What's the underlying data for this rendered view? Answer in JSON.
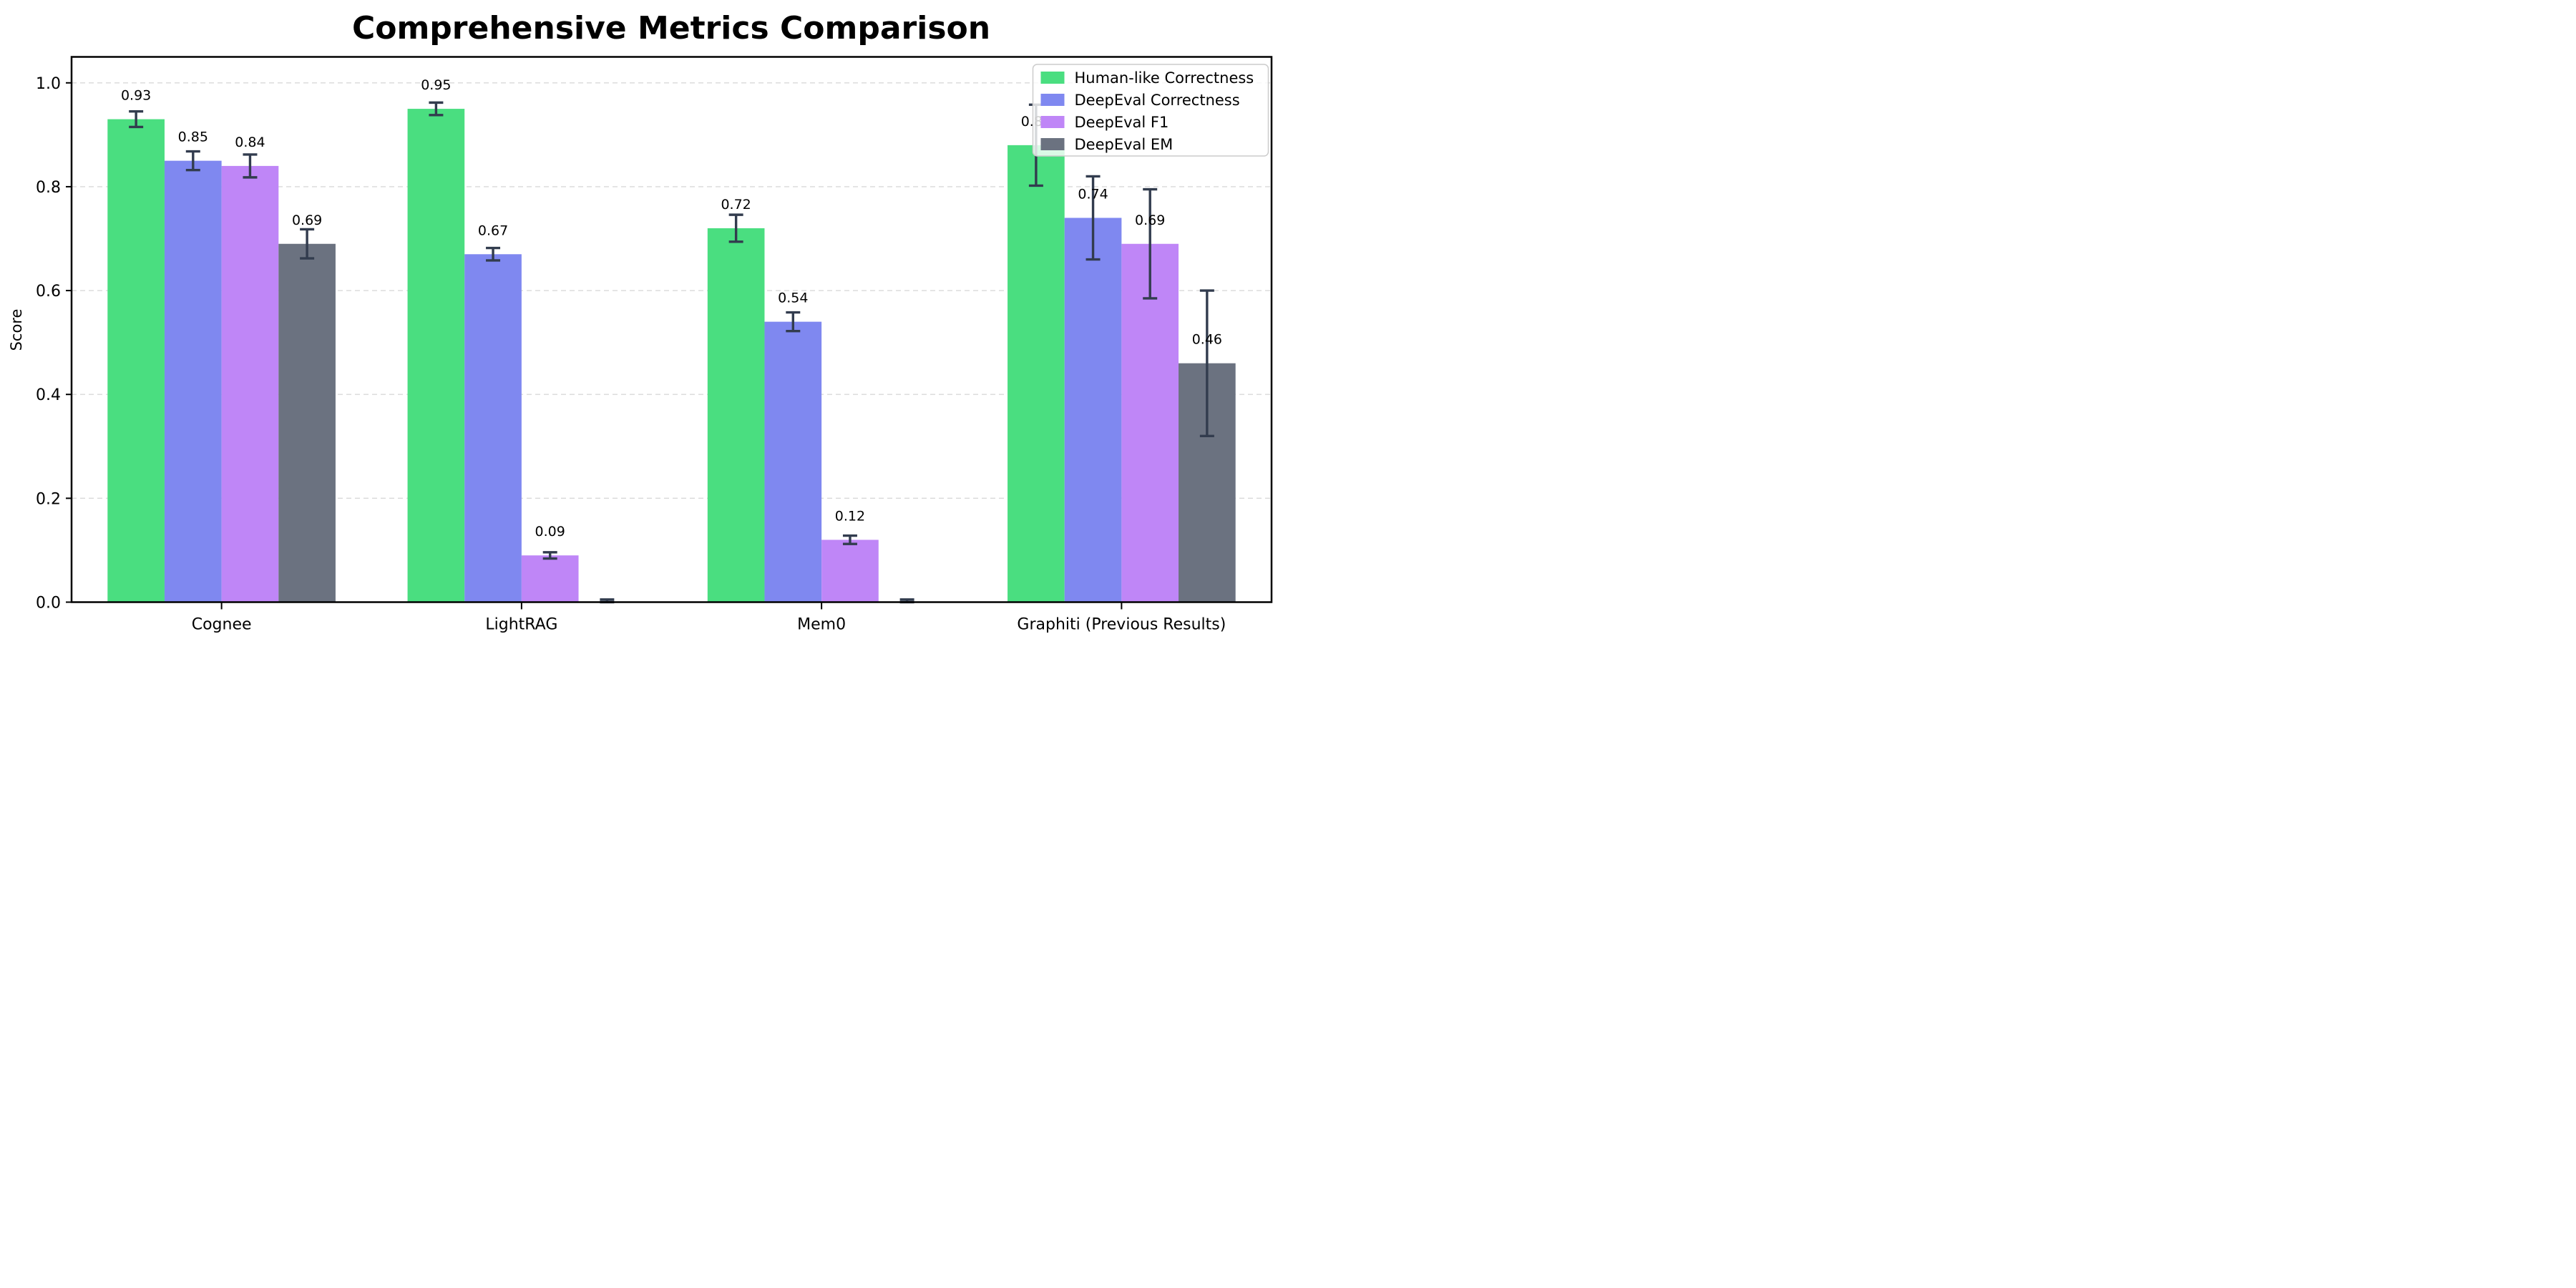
{
  "chart_data": {
    "type": "bar",
    "title": "Comprehensive Metrics Comparison",
    "ylabel": "Score",
    "xlabel": "",
    "categories": [
      "Cognee",
      "LightRAG",
      "Mem0",
      "Graphiti (Previous Results)"
    ],
    "yticks": [
      0.0,
      0.2,
      0.4,
      0.6,
      0.8,
      1.0
    ],
    "ylim": [
      0.0,
      1.05
    ],
    "grid": "horizontal-dashed",
    "legend_position": "upper-right",
    "bar_width": 0.19,
    "background_color": "#ffffff",
    "axis_color": "#000000",
    "grid_color": "#d9d9d9",
    "error_bar_color": "#323c4e",
    "label_color": "#000000",
    "series": [
      {
        "name": "Human-like Correctness",
        "color": "#4ade80",
        "values": [
          0.93,
          0.95,
          0.72,
          0.88
        ],
        "errors": [
          0.015,
          0.012,
          0.026,
          0.078
        ],
        "labels": [
          "0.93",
          "0.95",
          "0.72",
          "0.88"
        ]
      },
      {
        "name": "DeepEval Correctness",
        "color": "#7f88f0",
        "values": [
          0.85,
          0.67,
          0.54,
          0.74
        ],
        "errors": [
          0.018,
          0.012,
          0.018,
          0.08
        ],
        "labels": [
          "0.85",
          "0.67",
          "0.54",
          "0.74"
        ]
      },
      {
        "name": "DeepEval F1",
        "color": "#bf86f7",
        "values": [
          0.84,
          0.09,
          0.12,
          0.69
        ],
        "errors": [
          0.022,
          0.006,
          0.008,
          0.105
        ],
        "labels": [
          "0.84",
          "0.09",
          "0.12",
          "0.69"
        ]
      },
      {
        "name": "DeepEval EM",
        "color": "#6b7280",
        "values": [
          0.69,
          0.0,
          0.0,
          0.46
        ],
        "errors": [
          0.028,
          0.005,
          0.005,
          0.14
        ],
        "labels": [
          "0.69",
          "",
          "",
          "0.46"
        ]
      }
    ]
  }
}
